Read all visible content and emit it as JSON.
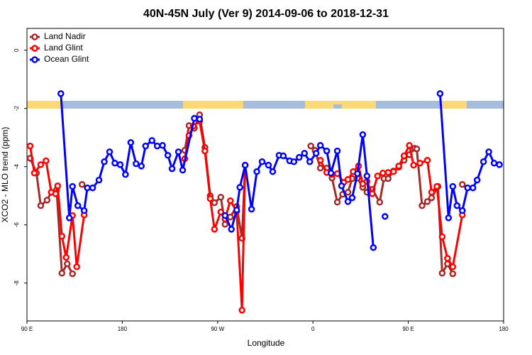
{
  "chart_data": {
    "type": "line",
    "title": "40N-45N July (Ver 9)   2014-09-06 to 2018-12-31",
    "x_label": "Longitude",
    "y_label": "XCO2 - MLO trend (ppm)",
    "xlim": [
      90,
      540
    ],
    "ylim": [
      -9.3,
      0.75
    ],
    "xticks": [
      {
        "value": 90,
        "label": "90 E"
      },
      180,
      {
        "value": 270,
        "label": "90 W"
      },
      {
        "value": 360,
        "label": "0"
      },
      {
        "value": 450,
        "label": "90 E"
      },
      {
        "value": 540,
        "label": "180"
      }
    ],
    "yticks": [
      0,
      -2,
      -4,
      -6,
      -8
    ],
    "legend": "top-left",
    "series": [
      {
        "name": "Land Nadir",
        "color": "#a52a2a",
        "x": [
          93,
          99,
          103,
          109,
          113,
          118,
          123,
          128,
          133,
          138,
          142,
          190,
          239,
          243,
          248,
          253,
          258,
          263,
          267,
          273,
          277,
          282,
          288,
          293,
          296,
          330,
          358,
          362,
          367,
          373,
          378,
          383,
          388,
          393,
          397,
          402,
          407,
          411,
          416,
          423,
          427,
          431,
          436,
          441,
          446,
          451,
          456,
          458,
          463,
          468,
          472,
          478,
          482,
          487,
          492,
          497,
          501
        ],
        "values": [
          -3.71,
          -4.22,
          -5.34,
          -5.15,
          -4.88,
          -4.8,
          -7.66,
          -7.34,
          -7.68,
          null,
          -4.61,
          null,
          -3.44,
          -2.59,
          -2.68,
          -2.22,
          -3.34,
          -5.0,
          -5.24,
          -5.05,
          -5.98,
          -5.73,
          -5.37,
          -6.46,
          -3.95,
          null,
          -3.29,
          -3.44,
          -4.05,
          -4.05,
          -4.39,
          -5.22,
          -4.95,
          -4.88,
          -4.41,
          -4.39,
          -4.71,
          -4.88,
          -4.78,
          -5.22,
          -4.41,
          -4.41,
          -4.15,
          -4.02,
          -3.78,
          -3.59,
          -3.37,
          -3.39,
          -5.34,
          -5.2,
          -5.07,
          -4.68,
          -7.66,
          -7.34,
          -7.68,
          null,
          -4.61
        ]
      },
      {
        "name": "Land Glint",
        "color": "#ff0000",
        "x": [
          93,
          97,
          103,
          108,
          113,
          117,
          119,
          123,
          127,
          133,
          137,
          144,
          190,
          239,
          243,
          247,
          253,
          258,
          263,
          267,
          273,
          277,
          282,
          288,
          293,
          296,
          330,
          367,
          373,
          378,
          383,
          389,
          393,
          398,
          403,
          407,
          411,
          416,
          421,
          426,
          431,
          436,
          441,
          446,
          451,
          455,
          461,
          468,
          472,
          477,
          482,
          487,
          492,
          501
        ],
        "values": [
          -3.29,
          -4.22,
          -3.93,
          -3.8,
          -4.88,
          -4.93,
          -4.66,
          -6.39,
          -7.12,
          -5.68,
          -7.44,
          -5.66,
          null,
          -3.73,
          -2.93,
          -2.61,
          -2.44,
          -3.46,
          -5.1,
          -6.15,
          -5.56,
          -5.8,
          -5.17,
          -5.54,
          -8.93,
          -3.95,
          null,
          -3.78,
          -4.2,
          -4.27,
          -4.24,
          -4.54,
          -4.44,
          -4.17,
          -3.98,
          -4.59,
          -4.51,
          -4.93,
          -4.32,
          -4.22,
          -4.2,
          -4.17,
          -3.98,
          -3.63,
          -3.27,
          -3.95,
          -3.88,
          -3.78,
          -4.88,
          -4.68,
          -6.41,
          -7.15,
          -7.44,
          -5.66
        ]
      },
      {
        "name": "Ocean Glint",
        "color": "#0000ff",
        "x": [
          122,
          130,
          133,
          138,
          144,
          147,
          152,
          158,
          163,
          168,
          173,
          178,
          183,
          188,
          193,
          198,
          202,
          208,
          213,
          218,
          223,
          227,
          233,
          237,
          248,
          253,
          270,
          277,
          283,
          288,
          291,
          296,
          302,
          307,
          312,
          318,
          322,
          328,
          332,
          338,
          342,
          347,
          352,
          357,
          363,
          367,
          373,
          377,
          383,
          387,
          393,
          397,
          402,
          407,
          411,
          417,
          422,
          428,
          450,
          480,
          488,
          492,
          496,
          501,
          506,
          511,
          515,
          521,
          526,
          531,
          536
        ],
        "values": [
          -1.49,
          -5.76,
          -4.68,
          -5.34,
          -5.51,
          -4.73,
          -4.73,
          -4.46,
          -3.83,
          -3.49,
          -3.88,
          -3.93,
          -4.27,
          -3.17,
          -3.9,
          -3.98,
          -3.29,
          -3.1,
          -3.29,
          -3.27,
          -3.61,
          -4.07,
          -3.49,
          -4.12,
          -2.34,
          -2.37,
          null,
          -5.68,
          -6.15,
          -5.49,
          -4.71,
          -3.95,
          -5.46,
          -4.17,
          -3.83,
          -3.95,
          -4.17,
          -3.61,
          -3.63,
          -3.8,
          -3.83,
          -3.68,
          -3.54,
          -3.83,
          -3.54,
          -3.27,
          -3.46,
          -4.22,
          -3.46,
          -4.66,
          -5.2,
          -5.07,
          -4.24,
          -2.9,
          -4.32,
          -6.78,
          null,
          -5.71,
          null,
          -1.49,
          -5.76,
          -4.68,
          -5.34,
          -5.51,
          -4.73,
          -4.73,
          -4.46,
          -3.83,
          -3.49,
          -3.88,
          -3.93
        ]
      }
    ]
  }
}
